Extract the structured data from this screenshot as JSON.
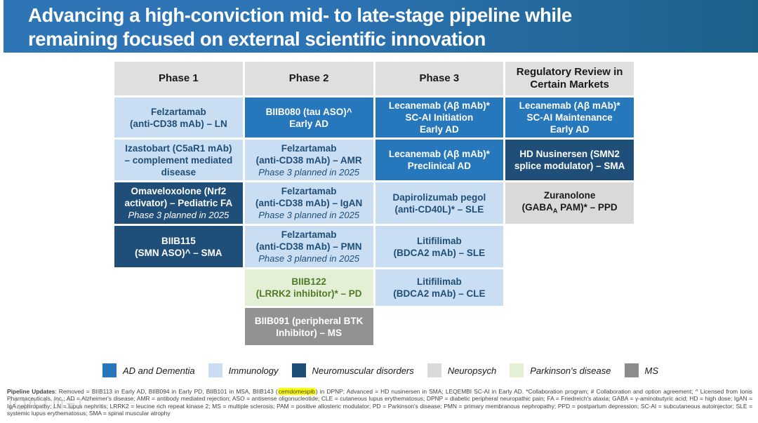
{
  "title": {
    "lines": [
      "Advancing a high-conviction mid- to late-stage pipeline while",
      "remaining focused on external scientific innovation"
    ]
  },
  "colors": {
    "title_gradient_left": "#2e75b6",
    "title_gradient_right": "#1c618a",
    "header_bg": "#dfdfdf",
    "ad_dementia_blue": "#2777bd",
    "immunology_light_blue": "#c9def2",
    "neuromuscular_navy": "#1f4e79",
    "neuropsych_light_gray": "#d9d9d9",
    "parkinsons_light_green": "#e4f0d5",
    "ms_gray": "#929292",
    "highlight_yellow": "#ffff00"
  },
  "table": {
    "headers": [
      "Phase 1",
      "Phase 2",
      "Phase 3",
      "Regulatory Review in Certain Markets"
    ],
    "rows": [
      {
        "cells": [
          {
            "style": "light-blue",
            "lines": [
              "Felzartamab",
              "(anti-CD38 mAb) – LN"
            ]
          },
          {
            "style": "mid-blue",
            "lines": [
              "BIIB080 (tau ASO)^",
              "Early AD"
            ]
          },
          {
            "style": "mid-blue",
            "lines": [
              "Lecanemab (Aβ mAb)*",
              "SC-AI Initiation",
              "Early AD"
            ]
          },
          {
            "style": "mid-blue",
            "lines": [
              "Lecanemab (Aβ mAb)*",
              "SC-AI Maintenance",
              "Early AD"
            ]
          }
        ]
      },
      {
        "cells": [
          {
            "style": "light-blue",
            "lines": [
              "Izastobart (C5aR1 mAb)",
              "– complement mediated",
              "disease"
            ]
          },
          {
            "style": "light-blue",
            "lines": [
              "Felzartamab",
              "(anti-CD38 mAb) – AMR"
            ],
            "note": "Phase 3 planned in 2025"
          },
          {
            "style": "mid-blue",
            "lines": [
              "Lecanemab (Aβ mAb)*",
              "Preclinical AD"
            ]
          },
          {
            "style": "navy",
            "lines": [
              "HD Nusinersen (SMN2",
              "splice modulator) – SMA"
            ]
          }
        ]
      },
      {
        "cells": [
          {
            "style": "navy",
            "lines": [
              "Omaveloxolone (Nrf2",
              "activator) – Pediatric FA"
            ],
            "note": "Phase 3 planned in 2025"
          },
          {
            "style": "light-blue",
            "lines": [
              "Felzartamab",
              "(anti-CD38 mAb) – IgAN"
            ],
            "note": "Phase 3 planned in 2025"
          },
          {
            "style": "light-blue",
            "lines": [
              "Dapirolizumab pegol",
              "(anti-CD40L)* – SLE"
            ]
          },
          {
            "style": "light-gray",
            "lines": [
              "Zuranolone",
              "(GABA_{A} PAM)* – PPD"
            ]
          }
        ]
      },
      {
        "cells": [
          {
            "style": "navy",
            "lines": [
              "BIIB115",
              "(SMN ASO)^ – SMA"
            ]
          },
          {
            "style": "light-blue",
            "lines": [
              "Felzartamab",
              "(anti-CD38 mAb) – PMN"
            ],
            "note": "Phase 3 planned in 2025"
          },
          {
            "style": "light-blue",
            "lines": [
              "Litifilimab",
              "(BDCA2 mAb) – SLE"
            ]
          },
          null
        ]
      },
      {
        "cells": [
          null,
          {
            "style": "light-green",
            "lines": [
              "BIIB122",
              "(LRRK2 inhibitor)* – PD"
            ]
          },
          {
            "style": "light-blue",
            "lines": [
              "Litifilimab",
              "(BDCA2 mAb) – CLE"
            ]
          },
          null
        ]
      },
      {
        "cells": [
          null,
          {
            "style": "gray",
            "lines": [
              "BIIB091 (peripheral BTK",
              "Inhibitor) – MS"
            ]
          },
          null,
          null
        ]
      }
    ]
  },
  "legend": {
    "items": [
      {
        "label": "AD and Dementia",
        "color": "#2777bd"
      },
      {
        "label": "Immunology",
        "color": "#c9def2"
      },
      {
        "label": "Neuromuscular disorders",
        "color": "#1f4e79"
      },
      {
        "label": "Neuropsych",
        "color": "#d9d9d9"
      },
      {
        "label": "Parkinson's disease",
        "color": "#e4f0d5"
      },
      {
        "label": "MS",
        "color": "#8c8c8c"
      }
    ]
  },
  "footer": {
    "segments": [
      {
        "text": "Pipeline Updates",
        "bold": true
      },
      {
        "text": ": Removed = BIIB113 in Early AD, BIIB094 in Early PD, BIIB101 in MSA, BIIB143 ("
      },
      {
        "text": "cemdomespib",
        "highlight": true
      },
      {
        "text": ") in DPNP; Advanced = HD nusinersen in SMA; LEQEMBI SC-AI in Early AD. *Collaboration program; # Collaboration and option agreement; ^ Licensed from Ionis Pharmaceuticals, Inc.; AD = Alzheimer's disease; AMR = antibody mediated rejection; ASO = antisense oligonucleotide; CLE = cutaneous lupus erythematosus; DPNP = diabetic peripheral neuropathic pain; FA = Friedreich's ataxia; GABA = γ-aminobutyric acid; HD = high dose; IgAN = IgA nephropathy; LN = lupus nephritis; LRRK2 = leucine rich repeat kinase 2; MS = multiple sclerosis; PAM = positive allosteric modulator; PD = Parkinson's disease; PMN = primary membranous nephropathy; PPD = postpartum depression; SC-AI = subcutaneous autoinjector; SLE = systemic lupus erythematosus; SMA = spinal muscular atrophy"
      }
    ]
  },
  "watermark": {
    "text": "〔〇八丨川三〕"
  }
}
